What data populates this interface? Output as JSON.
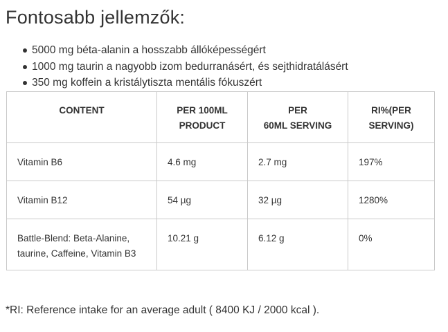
{
  "heading": "Fontosabb jellemzők:",
  "features": [
    "5000 mg béta-alanin a hosszabb állóképességért",
    "1000 mg taurin a nagyobb izom bedurranásért, és sejthidratálásért",
    "350 mg koffein a kristálytiszta mentális fókuszért"
  ],
  "table": {
    "headers": {
      "content": "CONTENT",
      "per100_line1": "PER 100ML",
      "per100_line2": "PRODUCT",
      "per60_line1": "PER",
      "per60_line2": "60ML SERVING",
      "ri_line1": "RI%(PER",
      "ri_line2": "SERVING)"
    },
    "rows": [
      {
        "content": "Vitamin B6",
        "per100": "4.6 mg",
        "per60": "2.7 mg",
        "ri": "197%"
      },
      {
        "content": "Vitamin B12",
        "per100": "54 µg",
        "per60": "32 µg",
        "ri": "1280%"
      },
      {
        "content_line1": "Battle-Blend: Beta-Alanine,",
        "content_line2": "taurine, Caffeine, Vitamin B3",
        "per100": "10.21 g",
        "per60": "6.12 g",
        "ri": "0%"
      }
    ]
  },
  "footnote": "*RI: Reference intake for an average adult ( 8400 KJ / 2000 kcal )."
}
